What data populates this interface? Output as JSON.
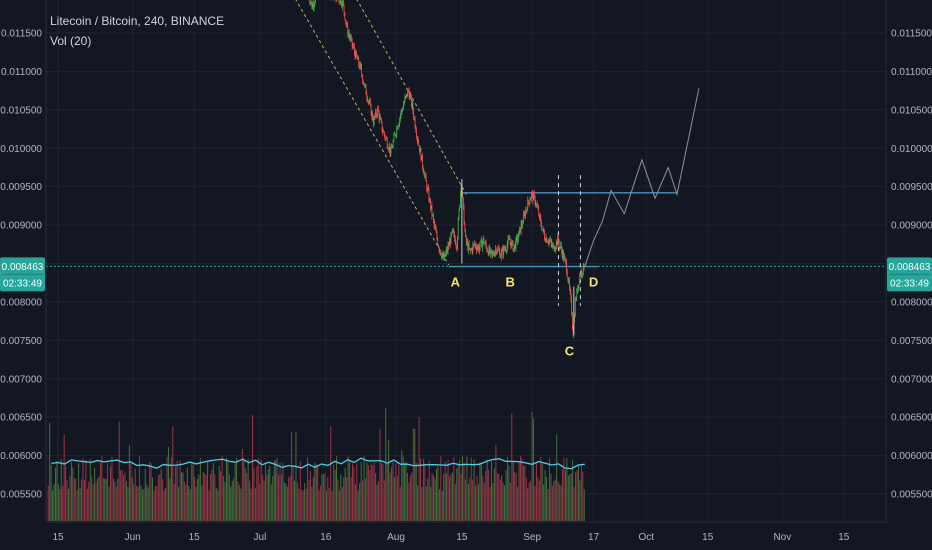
{
  "chart_data": {
    "type": "line",
    "title": "Litecoin / Bitcoin, 240, BINANCE",
    "subtitle": "Vol (20)",
    "y_ticks": [
      "0.011500",
      "0.011000",
      "0.010500",
      "0.010000",
      "0.009500",
      "0.009000",
      "0.008500",
      "0.008000",
      "0.007500",
      "0.007000",
      "0.006500",
      "0.006000",
      "0.005500"
    ],
    "ylim": [
      0.00512,
      0.01203
    ],
    "x_ticks": [
      "15",
      "Jun",
      "15",
      "Jul",
      "16",
      "Aug",
      "15",
      "Sep",
      "17",
      "Oct",
      "15",
      "Nov",
      "15"
    ],
    "current_price": "0.008463",
    "countdown": "02:33:49",
    "price_path": [
      {
        "d": 57,
        "v": 0.01205
      },
      {
        "d": 58,
        "v": 0.01185
      },
      {
        "d": 59,
        "v": 0.01198
      },
      {
        "d": 61,
        "v": 0.0121
      },
      {
        "d": 65,
        "v": 0.0119
      },
      {
        "d": 66,
        "v": 0.01155
      },
      {
        "d": 68,
        "v": 0.0112
      },
      {
        "d": 69,
        "v": 0.01105
      },
      {
        "d": 70,
        "v": 0.0108
      },
      {
        "d": 71,
        "v": 0.0106
      },
      {
        "d": 72,
        "v": 0.01035
      },
      {
        "d": 73,
        "v": 0.0105
      },
      {
        "d": 74,
        "v": 0.01025
      },
      {
        "d": 75,
        "v": 0.0101
      },
      {
        "d": 76,
        "v": 0.00995
      },
      {
        "d": 77,
        "v": 0.0102
      },
      {
        "d": 78,
        "v": 0.0104
      },
      {
        "d": 79,
        "v": 0.0106
      },
      {
        "d": 80,
        "v": 0.01075
      },
      {
        "d": 81,
        "v": 0.0105
      },
      {
        "d": 82,
        "v": 0.01015
      },
      {
        "d": 83,
        "v": 0.00985
      },
      {
        "d": 84,
        "v": 0.00955
      },
      {
        "d": 85,
        "v": 0.00925
      },
      {
        "d": 86,
        "v": 0.00895
      },
      {
        "d": 87,
        "v": 0.0087
      },
      {
        "d": 88,
        "v": 0.00855
      },
      {
        "d": 89,
        "v": 0.0087
      },
      {
        "d": 90,
        "v": 0.0089
      },
      {
        "d": 91,
        "v": 0.00875
      },
      {
        "d": 92,
        "v": 0.00958
      },
      {
        "d": 93,
        "v": 0.0088
      },
      {
        "d": 94,
        "v": 0.00865
      },
      {
        "d": 95,
        "v": 0.00875
      },
      {
        "d": 96,
        "v": 0.0087
      },
      {
        "d": 97,
        "v": 0.0088
      },
      {
        "d": 98,
        "v": 0.00868
      },
      {
        "d": 99,
        "v": 0.0086
      },
      {
        "d": 100,
        "v": 0.0087
      },
      {
        "d": 101,
        "v": 0.00862
      },
      {
        "d": 102,
        "v": 0.0087
      },
      {
        "d": 103,
        "v": 0.0088
      },
      {
        "d": 104,
        "v": 0.0087
      },
      {
        "d": 105,
        "v": 0.00885
      },
      {
        "d": 106,
        "v": 0.00905
      },
      {
        "d": 107,
        "v": 0.00925
      },
      {
        "d": 108,
        "v": 0.0094
      },
      {
        "d": 109,
        "v": 0.0093
      },
      {
        "d": 110,
        "v": 0.00905
      },
      {
        "d": 111,
        "v": 0.00885
      },
      {
        "d": 112,
        "v": 0.0088
      },
      {
        "d": 113,
        "v": 0.0087
      },
      {
        "d": 114,
        "v": 0.0088
      },
      {
        "d": 115,
        "v": 0.00865
      },
      {
        "d": 116,
        "v": 0.00845
      },
      {
        "d": 117,
        "v": 0.008
      },
      {
        "d": 117.5,
        "v": 0.0076
      },
      {
        "d": 118,
        "v": 0.008
      },
      {
        "d": 119,
        "v": 0.00835
      },
      {
        "d": 120,
        "v": 0.00846
      }
    ],
    "projection_path": [
      {
        "d": 120,
        "v": 0.00846
      },
      {
        "d": 122,
        "v": 0.0088
      },
      {
        "d": 124,
        "v": 0.00905
      },
      {
        "d": 126,
        "v": 0.00945
      },
      {
        "d": 129,
        "v": 0.00915
      },
      {
        "d": 133,
        "v": 0.00985
      },
      {
        "d": 136,
        "v": 0.00935
      },
      {
        "d": 139,
        "v": 0.00975
      },
      {
        "d": 141,
        "v": 0.0094
      },
      {
        "d": 146,
        "v": 0.01078
      }
    ],
    "resistance": {
      "value": 0.00942,
      "from": 92,
      "to": 141
    },
    "support": {
      "value": 0.00846,
      "from": 89,
      "to": 123
    },
    "volume_ma_level": 0.0059,
    "annotations": [
      "A",
      "B",
      "C",
      "D"
    ]
  }
}
